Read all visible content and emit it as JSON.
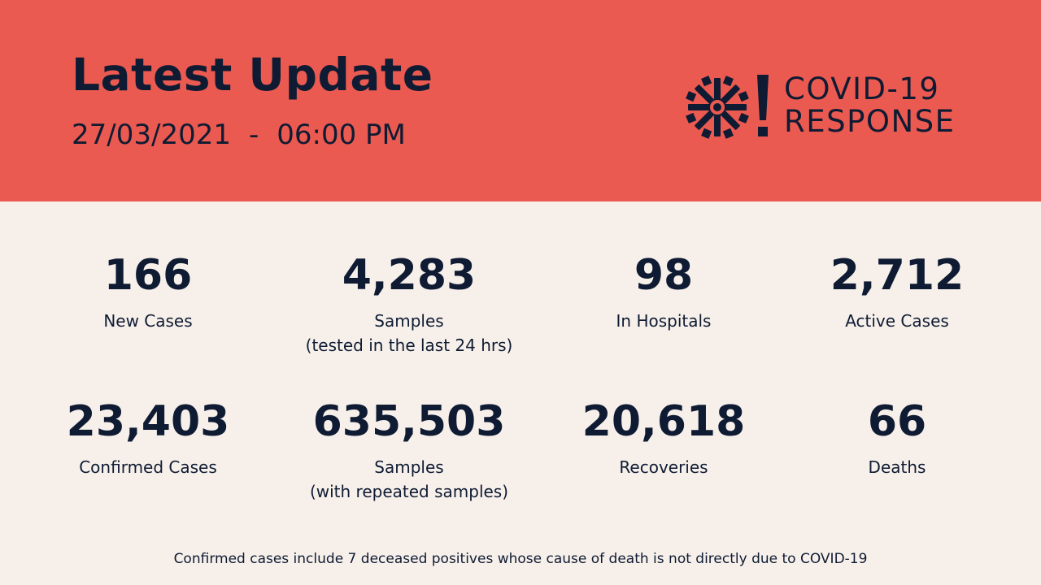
{
  "header": {
    "title": "Latest Update",
    "date": "27/03/2021",
    "separator": "-",
    "time": "06:00 PM",
    "logo_line1": "COVID-19",
    "logo_line2": "RESPONSE"
  },
  "stats": [
    {
      "value": "166",
      "label_line1": "New Cases",
      "label_line2": ""
    },
    {
      "value": "4,283",
      "label_line1": "Samples",
      "label_line2": "(tested in the last 24 hrs)"
    },
    {
      "value": "98",
      "label_line1": "In Hospitals",
      "label_line2": ""
    },
    {
      "value": "2,712",
      "label_line1": "Active Cases",
      "label_line2": ""
    },
    {
      "value": "23,403",
      "label_line1": "Confirmed Cases",
      "label_line2": ""
    },
    {
      "value": "635,503",
      "label_line1": "Samples",
      "label_line2": "(with repeated samples)"
    },
    {
      "value": "20,618",
      "label_line1": "Recoveries",
      "label_line2": ""
    },
    {
      "value": "66",
      "label_line1": "Deaths",
      "label_line2": ""
    }
  ],
  "footnote": "Confirmed cases include 7 deceased positives whose cause of death is not directly due to COVID-19",
  "colors": {
    "header_background": "#eb5a50",
    "page_background": "#f7f0ea",
    "text": "#0f1b33"
  },
  "icons": {
    "logo_mark": "asterisk-burst-icon",
    "logo_bang": "exclamation-icon"
  }
}
